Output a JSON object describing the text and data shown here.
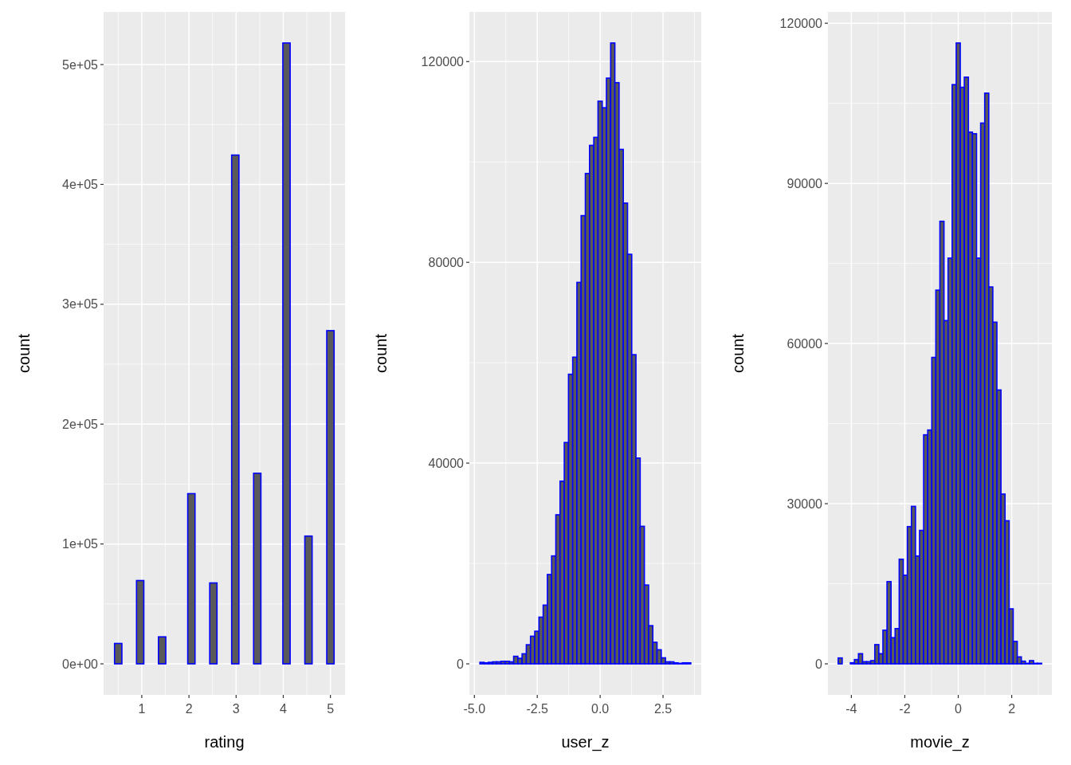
{
  "chart_data": [
    {
      "type": "histogram",
      "xlabel": "rating",
      "ylabel": "count",
      "color": "#0000ff",
      "grid": true,
      "bins": [
        0.422,
        0.578,
        0.733,
        0.888,
        1.043,
        1.198,
        1.353,
        1.509,
        1.664,
        1.819,
        1.974,
        2.129,
        2.284,
        2.44,
        2.595,
        2.75,
        2.905,
        3.06,
        3.215,
        3.371,
        3.526,
        3.681,
        3.836,
        3.991,
        4.146,
        4.302,
        4.457,
        4.612,
        4.767,
        4.922,
        5.078
      ],
      "values": [
        17000,
        0,
        0,
        69500,
        0,
        0,
        22500,
        0,
        0,
        0,
        142000,
        0,
        0,
        67500,
        0,
        0,
        424500,
        0,
        0,
        159000,
        0,
        0,
        0,
        518000,
        0,
        0,
        106600,
        0,
        0,
        278000
      ],
      "xlim": [
        0.19,
        5.31
      ],
      "ylim": [
        -25900,
        543900
      ],
      "xticks": [
        1,
        2,
        3,
        4,
        5
      ],
      "yticks": [
        {
          "value": 0,
          "label": "0e+00"
        },
        {
          "value": 100000,
          "label": "1e+05"
        },
        {
          "value": 200000,
          "label": "2e+05"
        },
        {
          "value": 300000,
          "label": "3e+05"
        },
        {
          "value": 400000,
          "label": "4e+05"
        },
        {
          "value": 500000,
          "label": "5e+05"
        }
      ]
    },
    {
      "type": "histogram",
      "xlabel": "user_z",
      "ylabel": "count",
      "color": "#0000ff",
      "grid": true,
      "bins": [
        -4.781,
        -4.613,
        -4.446,
        -4.278,
        -4.11,
        -3.943,
        -3.775,
        -3.607,
        -3.439,
        -3.272,
        -3.104,
        -2.936,
        -2.769,
        -2.601,
        -2.433,
        -2.266,
        -2.098,
        -1.93,
        -1.762,
        -1.595,
        -1.427,
        -1.259,
        -1.092,
        -0.924,
        -0.756,
        -0.589,
        -0.421,
        -0.253,
        -0.085,
        0.082,
        0.25,
        0.418,
        0.585,
        0.753,
        0.921,
        1.089,
        1.256,
        1.424,
        1.592,
        1.759,
        1.927,
        2.095,
        2.262,
        2.43,
        2.598,
        2.766,
        2.933,
        3.101,
        3.269,
        3.436,
        3.604
      ],
      "values": [
        300,
        200,
        300,
        400,
        400,
        500,
        500,
        400,
        1500,
        1100,
        2000,
        3800,
        5500,
        6500,
        9300,
        11700,
        17800,
        21500,
        29700,
        36400,
        44100,
        57700,
        61100,
        76000,
        89300,
        97700,
        103300,
        104900,
        112100,
        110800,
        116700,
        123700,
        115800,
        102500,
        91800,
        81600,
        61600,
        41000,
        27400,
        15700,
        7600,
        4300,
        2800,
        1200,
        400,
        400,
        200,
        100,
        200,
        200
      ],
      "xlim": [
        -5.2,
        4.02
      ],
      "ylim": [
        -6185,
        129885
      ],
      "xticks": [
        {
          "value": -5,
          "label": "-5.0"
        },
        {
          "value": -2.5,
          "label": "-2.5"
        },
        {
          "value": 0,
          "label": "0.0"
        },
        {
          "value": 2.5,
          "label": "2.5"
        }
      ],
      "yticks": [
        0,
        40000,
        80000,
        120000
      ]
    },
    {
      "type": "histogram",
      "xlabel": "movie_z",
      "ylabel": "count",
      "color": "#0000ff",
      "grid": true,
      "bins": [
        -4.494,
        -4.342,
        -4.189,
        -4.037,
        -3.885,
        -3.733,
        -3.58,
        -3.428,
        -3.276,
        -3.123,
        -2.971,
        -2.819,
        -2.666,
        -2.514,
        -2.362,
        -2.21,
        -2.057,
        -1.905,
        -1.753,
        -1.6,
        -1.448,
        -1.296,
        -1.143,
        -0.991,
        -0.839,
        -0.687,
        -0.534,
        -0.382,
        -0.23,
        -0.077,
        0.075,
        0.227,
        0.38,
        0.532,
        0.684,
        0.837,
        0.989,
        1.141,
        1.293,
        1.446,
        1.598,
        1.75,
        1.903,
        2.055,
        2.207,
        2.36,
        2.512,
        2.664,
        2.817,
        2.969,
        3.121
      ],
      "values": [
        1100,
        0,
        0,
        200,
        800,
        1900,
        400,
        400,
        600,
        3600,
        1900,
        6300,
        15400,
        4900,
        6600,
        19600,
        16600,
        25700,
        29500,
        20200,
        25000,
        42900,
        43800,
        57400,
        70000,
        82900,
        64300,
        76000,
        108500,
        116300,
        108000,
        109900,
        99600,
        99300,
        76000,
        101300,
        106900,
        70600,
        64000,
        51300,
        31800,
        26800,
        10300,
        4200,
        1300,
        500,
        100,
        600,
        100,
        100
      ],
      "xlim": [
        -4.875,
        3.502
      ],
      "ylim": [
        -5815,
        122115
      ],
      "xticks": [
        -4,
        -2,
        0,
        2
      ],
      "yticks": [
        0,
        30000,
        60000,
        90000,
        120000
      ]
    }
  ]
}
